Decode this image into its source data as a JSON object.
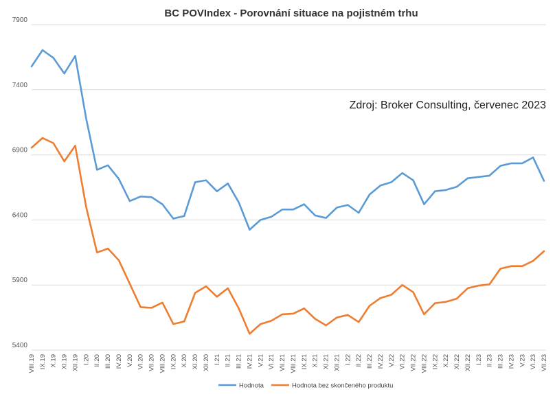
{
  "chart_data": {
    "type": "line",
    "title": "BC POVIndex - Porovnání situace na pojistném trhu",
    "annotation": "Zdroj: Broker Consulting, červenec 2023",
    "xlabel": "",
    "ylabel": "",
    "ylim": [
      5400,
      7900
    ],
    "yticks": [
      5400,
      5900,
      6400,
      6900,
      7400,
      7900
    ],
    "grid": true,
    "legend_position": "bottom",
    "categories": [
      "VIII.19",
      "IX.19",
      "X.19",
      "XI.19",
      "XII.19",
      "I.20",
      "II.20",
      "III.20",
      "IV.20",
      "V.20",
      "VI.20",
      "VII.20",
      "VIII.20",
      "IX.20",
      "X.20",
      "XI.20",
      "XII.20",
      "I.21",
      "II.21",
      "III.21",
      "IV.21",
      "V.21",
      "VI.21",
      "VII.21",
      "VIII.21",
      "IX.21",
      "X.21",
      "XI.21",
      "XII.21",
      "I.22",
      "II.22",
      "III.22",
      "IV.22",
      "V.22",
      "VI.22",
      "VII.22",
      "VIII.22",
      "IX.22",
      "X.22",
      "XI.22",
      "XII.22",
      "I.23",
      "II.23",
      "III.23",
      "IV.23",
      "V.23",
      "VI.23",
      "VII.23"
    ],
    "series": [
      {
        "name": "Hodnota",
        "color": "#5b9bd5",
        "values": [
          7580,
          7705,
          7645,
          7525,
          7660,
          7180,
          6785,
          6820,
          6715,
          6545,
          6580,
          6575,
          6520,
          6410,
          6430,
          6690,
          6705,
          6620,
          6680,
          6535,
          6325,
          6400,
          6425,
          6480,
          6480,
          6520,
          6435,
          6415,
          6495,
          6515,
          6455,
          6595,
          6665,
          6690,
          6760,
          6705,
          6520,
          6620,
          6630,
          6655,
          6720,
          6730,
          6740,
          6815,
          6835,
          6835,
          6880,
          6700
        ]
      },
      {
        "name": "Hodnota bez skončeného produktu",
        "color": "#ed7d31",
        "values": [
          6955,
          7030,
          6990,
          6850,
          6970,
          6500,
          6150,
          6180,
          6090,
          5910,
          5730,
          5725,
          5765,
          5600,
          5620,
          5840,
          5890,
          5810,
          5875,
          5720,
          5525,
          5600,
          5625,
          5675,
          5680,
          5720,
          5640,
          5590,
          5650,
          5670,
          5615,
          5740,
          5800,
          5825,
          5900,
          5845,
          5675,
          5760,
          5770,
          5795,
          5875,
          5895,
          5905,
          6025,
          6045,
          6045,
          6085,
          6160
        ]
      }
    ]
  }
}
